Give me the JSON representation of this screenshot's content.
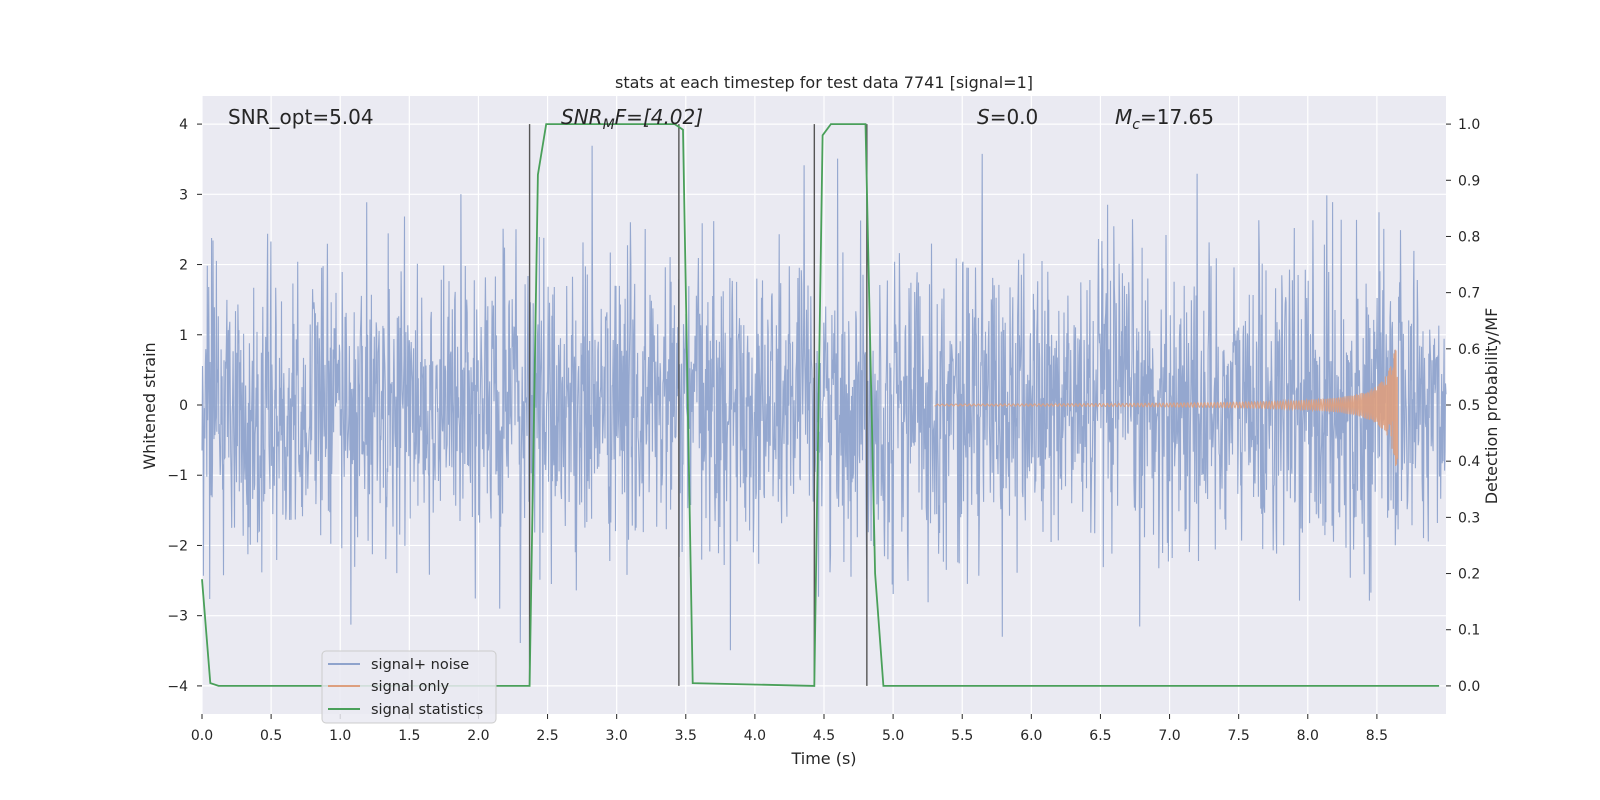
{
  "chart_data": {
    "type": "line",
    "title": "stats at each timestep for test data 7741 [signal=1]",
    "xlabel": "Time (s)",
    "ylabel": "Whitened strain",
    "ylabel_right": "Detection probability/MF",
    "xlim": [
      0,
      9.0
    ],
    "ylim": [
      -4.4,
      4.4
    ],
    "ylim_right": [
      -0.05,
      1.05
    ],
    "xticks": [
      "0.0",
      "0.5",
      "1.0",
      "1.5",
      "2.0",
      "2.5",
      "3.0",
      "3.5",
      "4.0",
      "4.5",
      "5.0",
      "5.5",
      "6.0",
      "6.5",
      "7.0",
      "7.5",
      "8.0",
      "8.5"
    ],
    "yticks": [
      "−4",
      "−3",
      "−2",
      "−1",
      "0",
      "1",
      "2",
      "3",
      "4"
    ],
    "yticks_right": [
      "0.0",
      "0.1",
      "0.2",
      "0.3",
      "0.4",
      "0.5",
      "0.6",
      "0.7",
      "0.8",
      "0.9",
      "1.0"
    ],
    "grid": true,
    "legend_position": "lower-left",
    "annotations": {
      "snr_opt": "SNR_opt=5.04",
      "snr_mf_sym": "SNR",
      "snr_mf_sub": "M",
      "snr_mf_rest": "F=[4.02]",
      "s_sym": "S",
      "s_rest": "=0.0",
      "mc_sym": "M",
      "mc_sub": "c",
      "mc_rest": "=17.65"
    },
    "series": [
      {
        "name": "signal+ noise",
        "axis": "left",
        "color": "#8fa3cc",
        "description_values": "whitened noise, amplitude mostly within [-2.4, 2.4], peaks to about ±4",
        "range": [
          -4.0,
          4.0
        ]
      },
      {
        "name": "signal only",
        "axis": "left",
        "color": "#dd9f7e",
        "chirp": {
          "start": 5.3,
          "end": 8.65,
          "peak_amplitude": 1.1
        }
      },
      {
        "name": "signal statistics",
        "axis": "right",
        "color": "#4aa05a",
        "x": [
          0.0,
          0.06,
          0.12,
          2.37,
          2.43,
          2.49,
          3.35,
          3.42,
          3.48,
          3.55,
          4.43,
          4.49,
          4.55,
          4.8,
          4.87,
          4.93,
          8.95
        ],
        "y": [
          0.19,
          0.005,
          0.0,
          0.0,
          0.91,
          1.0,
          1.0,
          1.0,
          0.99,
          0.005,
          0.0,
          0.98,
          1.0,
          1.0,
          0.2,
          0.0,
          0.0
        ]
      }
    ],
    "vertical_lines_x": [
      2.37,
      3.45,
      4.43,
      4.81
    ]
  }
}
